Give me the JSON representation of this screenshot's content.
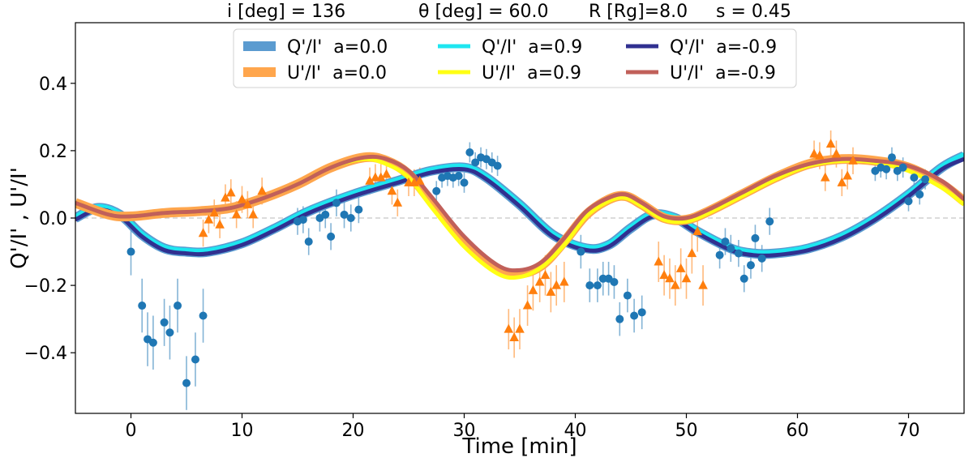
{
  "chart_data": {
    "type": "line",
    "title_parts": [
      "i [deg] = 136",
      "θ [deg] = 60.0",
      "R [Rg]=8.0",
      "s = 0.45"
    ],
    "xlabel": "Time [min]",
    "ylabel": "Q'/I' , U'/I'",
    "xlim": [
      -5,
      75
    ],
    "ylim": [
      -0.58,
      0.58
    ],
    "xticks": [
      0,
      10,
      20,
      30,
      40,
      50,
      60,
      70
    ],
    "yticks": [
      -0.4,
      -0.2,
      0.0,
      0.2,
      0.4
    ],
    "xtick_labels": [
      "0",
      "10",
      "20",
      "30",
      "40",
      "50",
      "60",
      "70"
    ],
    "ytick_labels": [
      "−0.4",
      "−0.2",
      "0.0",
      "0.2",
      "0.4"
    ],
    "zero_line": true,
    "legend": {
      "position": "top-center",
      "entries": [
        {
          "label": "Q'/I'  a=0.0",
          "color": "#5b9bd0",
          "width": 12
        },
        {
          "label": "U'/I'  a=0.0",
          "color": "#ffa64d",
          "width": 12
        },
        {
          "label": "Q'/I'  a=0.9",
          "color": "#1ee6f0",
          "width": 5
        },
        {
          "label": "U'/I'  a=0.9",
          "color": "#ffff14",
          "width": 5
        },
        {
          "label": "Q'/I'  a=-0.9",
          "color": "#303090",
          "width": 5
        },
        {
          "label": "U'/I'  a=-0.9",
          "color": "#c1605a",
          "width": 5
        }
      ]
    },
    "series": [
      {
        "name": "Q'/I'  a=0.0",
        "color": "#5b9bd0",
        "width": 12,
        "x": [
          -5,
          -3,
          -1,
          1,
          3,
          5,
          7,
          10,
          13,
          16,
          20,
          24,
          27,
          30,
          32,
          35,
          38,
          41,
          43,
          45,
          47,
          49,
          51,
          54,
          56,
          58,
          61,
          64,
          67,
          70,
          73,
          75
        ],
        "y": [
          0.0,
          0.03,
          0.01,
          -0.05,
          -0.09,
          -0.1,
          -0.1,
          -0.075,
          -0.03,
          0.02,
          0.07,
          0.11,
          0.14,
          0.15,
          0.12,
          0.04,
          -0.05,
          -0.09,
          -0.08,
          -0.03,
          0.01,
          0.0,
          -0.04,
          -0.09,
          -0.105,
          -0.105,
          -0.09,
          -0.055,
          0.0,
          0.07,
          0.15,
          0.185
        ]
      },
      {
        "name": "Q'/I'  a=0.9",
        "color": "#1ee6f0",
        "width": 5,
        "x": [
          -5,
          -3,
          -1,
          1,
          3,
          5,
          7,
          10,
          13,
          16,
          20,
          24,
          27,
          30,
          32,
          35,
          38,
          41,
          43,
          45,
          47,
          49,
          51,
          54,
          56,
          58,
          61,
          64,
          67,
          70,
          73,
          75
        ],
        "y": [
          0.005,
          0.035,
          0.015,
          -0.045,
          -0.085,
          -0.095,
          -0.095,
          -0.07,
          -0.025,
          0.025,
          0.075,
          0.115,
          0.145,
          0.155,
          0.125,
          0.045,
          -0.045,
          -0.085,
          -0.075,
          -0.025,
          0.015,
          0.005,
          -0.035,
          -0.085,
          -0.1,
          -0.1,
          -0.085,
          -0.05,
          0.005,
          0.075,
          0.155,
          0.19
        ]
      },
      {
        "name": "Q'/I'  a=-0.9",
        "color": "#303090",
        "width": 5,
        "x": [
          -5,
          -3,
          -1,
          1,
          3,
          5,
          7,
          10,
          13,
          16,
          20,
          24,
          27,
          30,
          32,
          35,
          38,
          41,
          43,
          45,
          47,
          49,
          51,
          54,
          56,
          58,
          61,
          64,
          67,
          70,
          73,
          75
        ],
        "y": [
          -0.005,
          0.025,
          0.005,
          -0.055,
          -0.095,
          -0.105,
          -0.105,
          -0.08,
          -0.035,
          0.015,
          0.065,
          0.105,
          0.135,
          0.145,
          0.115,
          0.035,
          -0.055,
          -0.095,
          -0.085,
          -0.035,
          0.005,
          -0.005,
          -0.045,
          -0.095,
          -0.11,
          -0.11,
          -0.095,
          -0.06,
          -0.005,
          0.065,
          0.145,
          0.175
        ]
      },
      {
        "name": "U'/I'  a=0.0",
        "color": "#ffa64d",
        "width": 12,
        "x": [
          -5,
          -2,
          0,
          3,
          6,
          9,
          12,
          15,
          18,
          21,
          23,
          25,
          27,
          30,
          33,
          35,
          37,
          39,
          41,
          43,
          44.5,
          46,
          48,
          50,
          52,
          55,
          58,
          61,
          64,
          67,
          70,
          73,
          75
        ],
        "y": [
          0.045,
          0.01,
          0.005,
          0.015,
          0.02,
          0.03,
          0.06,
          0.1,
          0.15,
          0.18,
          0.17,
          0.13,
          0.05,
          -0.07,
          -0.15,
          -0.165,
          -0.14,
          -0.07,
          0.01,
          0.055,
          0.065,
          0.04,
          0.0,
          -0.005,
          0.02,
          0.07,
          0.12,
          0.16,
          0.175,
          0.17,
          0.15,
          0.1,
          0.05
        ]
      },
      {
        "name": "U'/I'  a=0.9",
        "color": "#ffff14",
        "width": 5,
        "x": [
          -5,
          -2,
          0,
          3,
          6,
          9,
          12,
          15,
          18,
          21,
          23,
          25,
          27,
          30,
          33,
          35,
          37,
          39,
          41,
          43,
          44.5,
          46,
          48,
          50,
          52,
          55,
          58,
          61,
          64,
          67,
          70,
          73,
          75
        ],
        "y": [
          0.045,
          0.01,
          0.005,
          0.015,
          0.02,
          0.03,
          0.06,
          0.1,
          0.15,
          0.175,
          0.16,
          0.12,
          0.035,
          -0.085,
          -0.165,
          -0.175,
          -0.145,
          -0.08,
          0.005,
          0.05,
          0.06,
          0.035,
          -0.005,
          -0.01,
          0.015,
          0.065,
          0.115,
          0.155,
          0.17,
          0.165,
          0.14,
          0.09,
          0.04
        ]
      },
      {
        "name": "U'/I'  a=-0.9",
        "color": "#c1605a",
        "width": 5,
        "x": [
          -5,
          -2,
          0,
          3,
          6,
          9,
          12,
          15,
          18,
          21,
          23,
          25,
          27,
          30,
          33,
          35,
          37,
          39,
          41,
          43,
          44.5,
          46,
          48,
          50,
          52,
          55,
          58,
          61,
          64,
          67,
          70,
          73,
          75
        ],
        "y": [
          0.045,
          0.01,
          0.005,
          0.015,
          0.02,
          0.03,
          0.06,
          0.1,
          0.15,
          0.18,
          0.175,
          0.14,
          0.065,
          -0.055,
          -0.14,
          -0.155,
          -0.13,
          -0.06,
          0.02,
          0.06,
          0.07,
          0.045,
          0.005,
          0.0,
          0.025,
          0.075,
          0.125,
          0.16,
          0.175,
          0.17,
          0.155,
          0.11,
          0.055
        ]
      }
    ],
    "scatter": [
      {
        "name": "Q'/I' data",
        "marker": "circle",
        "color": "#1f77b4",
        "points": [
          [
            0,
            -0.1,
            0.07
          ],
          [
            1,
            -0.26,
            0.08
          ],
          [
            1.5,
            -0.36,
            0.08
          ],
          [
            2,
            -0.37,
            0.08
          ],
          [
            3,
            -0.31,
            0.07
          ],
          [
            3.5,
            -0.34,
            0.08
          ],
          [
            4.2,
            -0.26,
            0.08
          ],
          [
            5,
            -0.49,
            0.08
          ],
          [
            5.8,
            -0.42,
            0.08
          ],
          [
            6.5,
            -0.29,
            0.08
          ],
          [
            15,
            -0.01,
            0.04
          ],
          [
            15.5,
            -0.005,
            0.04
          ],
          [
            16,
            -0.07,
            0.04
          ],
          [
            17,
            0.0,
            0.04
          ],
          [
            17.5,
            0.01,
            0.04
          ],
          [
            18,
            -0.055,
            0.04
          ],
          [
            18.5,
            0.045,
            0.04
          ],
          [
            19.2,
            0.01,
            0.04
          ],
          [
            19.8,
            0.0,
            0.04
          ],
          [
            20.5,
            0.025,
            0.04
          ],
          [
            27.5,
            0.08,
            0.03
          ],
          [
            28,
            0.12,
            0.03
          ],
          [
            28.5,
            0.125,
            0.03
          ],
          [
            29,
            0.12,
            0.03
          ],
          [
            29.5,
            0.125,
            0.03
          ],
          [
            30,
            0.105,
            0.03
          ],
          [
            30.5,
            0.195,
            0.03
          ],
          [
            31,
            0.165,
            0.03
          ],
          [
            31.5,
            0.18,
            0.03
          ],
          [
            32,
            0.175,
            0.03
          ],
          [
            32.5,
            0.165,
            0.03
          ],
          [
            33,
            0.155,
            0.03
          ],
          [
            40.5,
            -0.1,
            0.05
          ],
          [
            41.3,
            -0.2,
            0.05
          ],
          [
            42,
            -0.2,
            0.05
          ],
          [
            42.5,
            -0.18,
            0.05
          ],
          [
            43,
            -0.18,
            0.05
          ],
          [
            43.5,
            -0.19,
            0.05
          ],
          [
            44,
            -0.3,
            0.05
          ],
          [
            44.7,
            -0.23,
            0.05
          ],
          [
            45.3,
            -0.29,
            0.05
          ],
          [
            46,
            -0.28,
            0.05
          ],
          [
            53,
            -0.11,
            0.04
          ],
          [
            53.5,
            -0.07,
            0.04
          ],
          [
            54,
            -0.09,
            0.04
          ],
          [
            54.7,
            -0.105,
            0.04
          ],
          [
            55.2,
            -0.18,
            0.04
          ],
          [
            55.8,
            -0.14,
            0.04
          ],
          [
            56.2,
            -0.06,
            0.04
          ],
          [
            56.8,
            -0.12,
            0.04
          ],
          [
            57.5,
            -0.01,
            0.04
          ],
          [
            67,
            0.14,
            0.03
          ],
          [
            67.5,
            0.15,
            0.03
          ],
          [
            68,
            0.145,
            0.03
          ],
          [
            68.5,
            0.18,
            0.03
          ],
          [
            69,
            0.14,
            0.03
          ],
          [
            69.5,
            0.15,
            0.03
          ],
          [
            70,
            0.05,
            0.03
          ],
          [
            70.5,
            0.12,
            0.03
          ],
          [
            71,
            0.07,
            0.03
          ],
          [
            71.5,
            0.115,
            0.03
          ]
        ]
      },
      {
        "name": "U'/I' data",
        "marker": "triangle",
        "color": "#ff7f0e",
        "points": [
          [
            6.5,
            -0.045,
            0.04
          ],
          [
            7,
            -0.005,
            0.04
          ],
          [
            7.5,
            0.015,
            0.04
          ],
          [
            8,
            -0.02,
            0.04
          ],
          [
            8.5,
            0.06,
            0.04
          ],
          [
            9,
            0.075,
            0.04
          ],
          [
            9.5,
            0.01,
            0.04
          ],
          [
            10,
            0.055,
            0.04
          ],
          [
            10.5,
            0.04,
            0.04
          ],
          [
            11,
            0.01,
            0.04
          ],
          [
            11.8,
            0.08,
            0.04
          ],
          [
            21.5,
            0.11,
            0.04
          ],
          [
            22,
            0.12,
            0.04
          ],
          [
            22.5,
            0.12,
            0.04
          ],
          [
            23,
            0.13,
            0.04
          ],
          [
            23.5,
            0.08,
            0.04
          ],
          [
            24,
            0.045,
            0.04
          ],
          [
            25,
            0.105,
            0.04
          ],
          [
            25.5,
            0.105,
            0.04
          ],
          [
            26,
            0.11,
            0.04
          ],
          [
            34,
            -0.33,
            0.06
          ],
          [
            34.5,
            -0.355,
            0.06
          ],
          [
            35,
            -0.33,
            0.06
          ],
          [
            35.7,
            -0.26,
            0.06
          ],
          [
            36.2,
            -0.215,
            0.06
          ],
          [
            36.8,
            -0.19,
            0.06
          ],
          [
            37.3,
            -0.17,
            0.06
          ],
          [
            37.8,
            -0.22,
            0.06
          ],
          [
            38.3,
            -0.2,
            0.06
          ],
          [
            39,
            -0.19,
            0.06
          ],
          [
            47.5,
            -0.13,
            0.06
          ],
          [
            48,
            -0.17,
            0.06
          ],
          [
            48.5,
            -0.18,
            0.06
          ],
          [
            49,
            -0.2,
            0.06
          ],
          [
            49.5,
            -0.15,
            0.06
          ],
          [
            50,
            -0.18,
            0.06
          ],
          [
            50.5,
            -0.105,
            0.06
          ],
          [
            51,
            -0.04,
            0.06
          ],
          [
            51.5,
            -0.2,
            0.06
          ],
          [
            61.5,
            0.19,
            0.04
          ],
          [
            62,
            0.185,
            0.04
          ],
          [
            62.5,
            0.12,
            0.04
          ],
          [
            63,
            0.22,
            0.04
          ],
          [
            63.5,
            0.19,
            0.04
          ],
          [
            64,
            0.105,
            0.04
          ],
          [
            64.5,
            0.125,
            0.04
          ],
          [
            65,
            0.17,
            0.04
          ]
        ]
      }
    ]
  }
}
